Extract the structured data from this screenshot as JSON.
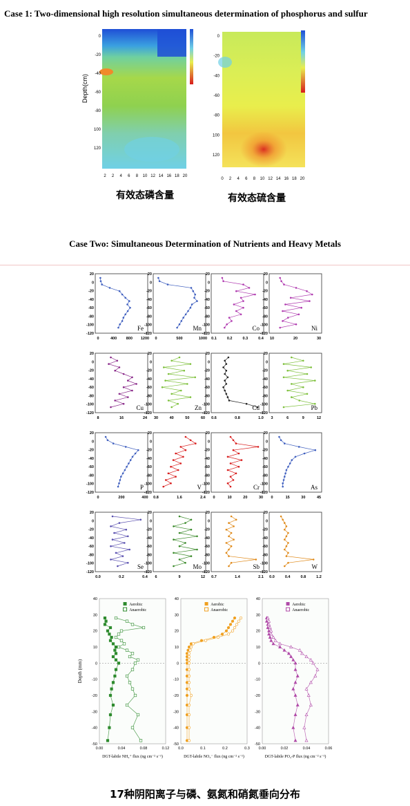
{
  "case1": {
    "title": "Case 1: Two-dimensional high resolution simultaneous determination of phosphorus and sulfur",
    "ylabel": "Depth(cm)",
    "map1_yticks": [
      "0",
      "-20",
      "-40",
      "-60",
      "-80",
      "100",
      "120"
    ],
    "map1_xticks": [
      "2",
      "2",
      "4",
      "6",
      "8",
      "10",
      "12",
      "14",
      "16",
      "18",
      "20"
    ],
    "map2_yticks": [
      "0",
      "-20",
      "-40",
      "-60",
      "-80",
      "100",
      "120"
    ],
    "map2_xticks": [
      "0",
      "2",
      "4",
      "6",
      "8",
      "10",
      "12",
      "14",
      "16",
      "18",
      "20"
    ],
    "caption_p": "有效态磷含量",
    "caption_s": "有效态硫含量",
    "colors": {
      "blue": "#1f4fd6",
      "cyan": "#6fd0e6",
      "green": "#8fd14f",
      "yellow": "#e9ee4c",
      "orange": "#f08a2a",
      "red": "#d81c1c"
    }
  },
  "case2": {
    "title": "Case Two: Simultaneous Determination of Nutrients and Heavy Metals",
    "yticks": [
      "20",
      "0",
      "-20",
      "-40",
      "-60",
      "-80",
      "-100",
      "-120"
    ],
    "panels": [
      {
        "el": "Fe",
        "color": "#3f5fbf",
        "xticks": [
          "0",
          "400",
          "800",
          "1200"
        ],
        "xmax": 1200,
        "values": [
          60,
          70,
          100,
          300,
          550,
          620,
          700,
          800,
          750,
          820,
          760,
          700,
          650,
          620,
          560,
          520
        ]
      },
      {
        "el": "Mn",
        "color": "#3f5fbf",
        "xticks": [
          "0",
          "500",
          "1000"
        ],
        "xmax": 1200,
        "values": [
          60,
          90,
          300,
          900,
          950,
          1000,
          980,
          1050,
          920,
          880,
          820,
          760,
          700,
          650,
          600,
          540
        ]
      },
      {
        "el": "Co",
        "color": "#b03cb0",
        "xticks": [
          "0.1",
          "0.2",
          "0.3",
          "0.4"
        ],
        "xmax": 0.45,
        "values": [
          0.12,
          0.13,
          0.3,
          0.35,
          0.24,
          0.4,
          0.28,
          0.3,
          0.22,
          0.3,
          0.24,
          0.28,
          0.18,
          0.2,
          0.16,
          0.14
        ],
        "xmin": 0.05
      },
      {
        "el": "Ni",
        "color": "#b03cb0",
        "xticks": [
          "10",
          "20",
          "30"
        ],
        "xmax": 35,
        "values": [
          6,
          7,
          9,
          18,
          26,
          30,
          14,
          28,
          10,
          22,
          8,
          20,
          12,
          8,
          18,
          6
        ],
        "xmin": 0
      },
      {
        "el": "Cu",
        "color": "#8a2a8a",
        "xticks": [
          "8",
          "16",
          "24"
        ],
        "xmax": 26,
        "values": [
          10,
          13,
          9,
          14,
          12,
          16,
          20,
          18,
          22,
          16,
          20,
          14,
          18,
          12,
          16,
          10
        ],
        "xmin": 4
      },
      {
        "el": "Zn",
        "color": "#7ec03c",
        "xticks": [
          "30",
          "40",
          "50",
          "60"
        ],
        "xmax": 60,
        "values": [
          45,
          40,
          52,
          35,
          48,
          38,
          55,
          36,
          50,
          34,
          46,
          40,
          52,
          38,
          44,
          40
        ],
        "xmin": 30
      },
      {
        "el": "Cd",
        "color": "#222222",
        "xticks": [
          "0.6",
          "0.8",
          "1.0"
        ],
        "xmax": 1.1,
        "values": [
          0.65,
          0.6,
          0.62,
          0.58,
          0.62,
          0.6,
          0.64,
          0.6,
          0.62,
          0.58,
          0.6,
          0.62,
          0.64,
          0.66,
          0.9,
          1.05
        ],
        "xmin": 0.45
      },
      {
        "el": "Pb",
        "color": "#7ec03c",
        "xticks": [
          "3",
          "6",
          "9",
          "12"
        ],
        "xmax": 13,
        "values": [
          6,
          9,
          4,
          11,
          5,
          10,
          4,
          12,
          6,
          9,
          5,
          10,
          6,
          8,
          12,
          4
        ],
        "xmin": 1
      },
      {
        "el": "P",
        "color": "#3f5fbf",
        "xticks": [
          "0",
          "200",
          "400"
        ],
        "xmax": 450,
        "values": [
          40,
          60,
          120,
          250,
          380,
          350,
          320,
          300,
          280,
          260,
          240,
          220,
          200,
          190,
          180,
          170
        ],
        "xmin": -40
      },
      {
        "el": "V",
        "color": "#d81c1c",
        "xticks": [
          "0.8",
          "1.6",
          "2.4"
        ],
        "xmax": 2.5,
        "values": [
          1.8,
          2.0,
          2.2,
          1.6,
          1.8,
          1.4,
          1.7,
          1.3,
          1.6,
          1.2,
          1.5,
          1.1,
          1.4,
          1.0,
          1.2,
          0.9
        ],
        "xmin": 0.6
      },
      {
        "el": "Cr",
        "color": "#d81c1c",
        "xticks": [
          "0",
          "10",
          "20",
          "30"
        ],
        "xmax": 32,
        "values": [
          10,
          12,
          14,
          30,
          12,
          16,
          8,
          18,
          10,
          16,
          8,
          14,
          10,
          12,
          8,
          10
        ],
        "xmin": -2
      },
      {
        "el": "As",
        "color": "#3f5fbf",
        "xticks": [
          "0",
          "15",
          "30",
          "45"
        ],
        "xmax": 52,
        "values": [
          8,
          10,
          14,
          30,
          48,
          36,
          26,
          22,
          20,
          18,
          16,
          15,
          14,
          13,
          12,
          12
        ],
        "xmin": 0
      },
      {
        "el": "Se",
        "color": "#5a50b0",
        "xticks": [
          "0.0",
          "0.2",
          "0.4"
        ],
        "xmax": 0.5,
        "values": [
          0.12,
          0.45,
          0.2,
          0.1,
          0.28,
          0.14,
          0.3,
          0.12,
          0.26,
          0.1,
          0.32,
          0.16,
          0.24,
          0.1,
          0.3,
          0.18
        ],
        "xmin": -0.05
      },
      {
        "el": "Mo",
        "color": "#3a8a2a",
        "xticks": [
          "6",
          "9",
          "12"
        ],
        "xmax": 13,
        "values": [
          9,
          11,
          10,
          8,
          11,
          9,
          12,
          8,
          10,
          9,
          12,
          8,
          11,
          9,
          10,
          8
        ],
        "xmin": 5
      },
      {
        "el": "Sb",
        "color": "#e08a1a",
        "xticks": [
          "0.7",
          "1.4",
          "2.1"
        ],
        "xmax": 2.2,
        "values": [
          1.0,
          1.2,
          0.9,
          1.1,
          0.8,
          1.0,
          0.9,
          1.1,
          0.8,
          1.0,
          0.9,
          0.8,
          0.9,
          2.0,
          1.0,
          0.9
        ],
        "xmin": 0.3
      },
      {
        "el": "W",
        "color": "#e08a1a",
        "xticks": [
          "0.0",
          "0.4",
          "0.8",
          "1.2"
        ],
        "xmax": 1.25,
        "values": [
          0.2,
          0.25,
          0.3,
          0.35,
          0.3,
          0.4,
          0.35,
          0.3,
          0.4,
          0.35,
          0.3,
          0.4,
          0.35,
          1.1,
          0.4,
          0.3
        ],
        "xmin": -0.05
      }
    ]
  },
  "flux": {
    "ylabel": "Depth (mm)",
    "yticks": [
      "40",
      "30",
      "20",
      "10",
      "0",
      "-10",
      "-20",
      "-30",
      "-40",
      "-50"
    ],
    "legend_aerobic": "Aerobic",
    "legend_anaerobic": "Anaerobic",
    "panels": [
      {
        "key": "nh4",
        "color": "#2e8b2e",
        "marker": "square",
        "xlabel": "DGT-labile NH₄⁺ flux (ng cm⁻² s⁻¹)",
        "xticks": [
          "0.00",
          "0.04",
          "0.08",
          "0.12"
        ],
        "xmax": 0.12,
        "aerobic": [
          0.01,
          0.012,
          0.01,
          0.02,
          0.015,
          0.018,
          0.022,
          0.02,
          0.025,
          0.03,
          0.028,
          0.03,
          0.025,
          0.03,
          0.035,
          0.03,
          0.028,
          0.025,
          0.022,
          0.02,
          0.025,
          0.02,
          0.018,
          0.015
        ],
        "anaerobic": [
          0.03,
          0.05,
          0.06,
          0.08,
          0.04,
          0.035,
          0.03,
          0.04,
          0.045,
          0.035,
          0.05,
          0.06,
          0.055,
          0.07,
          0.065,
          0.06,
          0.05,
          0.055,
          0.06,
          0.065,
          0.05,
          0.07,
          0.06,
          0.075
        ]
      },
      {
        "key": "no3",
        "color": "#f0a020",
        "marker": "star",
        "xlabel": "DGT-labile NO₃⁻ flux (ng cm⁻² s⁻¹)",
        "xticks": [
          "0.0",
          "0.1",
          "0.2",
          "0.3"
        ],
        "xmax": 0.32,
        "aerobic": [
          0.26,
          0.25,
          0.24,
          0.23,
          0.22,
          0.2,
          0.16,
          0.1,
          0.05,
          0.04,
          0.035,
          0.03,
          0.03,
          0.03,
          0.03,
          0.03,
          0.03,
          0.03,
          0.03,
          0.03,
          0.03,
          0.03,
          0.03,
          0.03
        ],
        "anaerobic": [
          0.29,
          0.28,
          0.27,
          0.26,
          0.25,
          0.23,
          0.18,
          0.12,
          0.06,
          0.05,
          0.045,
          0.04,
          0.04,
          0.04,
          0.04,
          0.04,
          0.04,
          0.04,
          0.04,
          0.05,
          0.04,
          0.04,
          0.04,
          0.04
        ]
      },
      {
        "key": "po4",
        "color": "#b04aa8",
        "marker": "triangle",
        "xlabel": "DGT-labile PO₄-P flux (ng cm⁻² s⁻¹)",
        "xticks": [
          "0.00",
          "0.02",
          "0.04",
          "0.06"
        ],
        "xmax": 0.06,
        "aerobic": [
          0.004,
          0.004,
          0.005,
          0.005,
          0.006,
          0.006,
          0.007,
          0.008,
          0.01,
          0.016,
          0.02,
          0.024,
          0.026,
          0.028,
          0.03,
          0.03,
          0.032,
          0.03,
          0.028,
          0.03,
          0.032,
          0.03,
          0.028,
          0.03
        ],
        "anaerobic": [
          0.005,
          0.006,
          0.006,
          0.007,
          0.008,
          0.008,
          0.01,
          0.012,
          0.016,
          0.026,
          0.034,
          0.036,
          0.04,
          0.044,
          0.046,
          0.05,
          0.048,
          0.044,
          0.04,
          0.042,
          0.044,
          0.04,
          0.038,
          0.04
        ]
      }
    ],
    "depths": [
      28,
      26,
      24,
      22,
      20,
      18,
      16,
      14,
      12,
      10,
      8,
      6,
      4,
      2,
      0,
      -4,
      -8,
      -12,
      -16,
      -20,
      -26,
      -32,
      -40,
      -48
    ],
    "caption": "17种阴阳离子与磷、氨氮和硝氮垂向分布"
  }
}
